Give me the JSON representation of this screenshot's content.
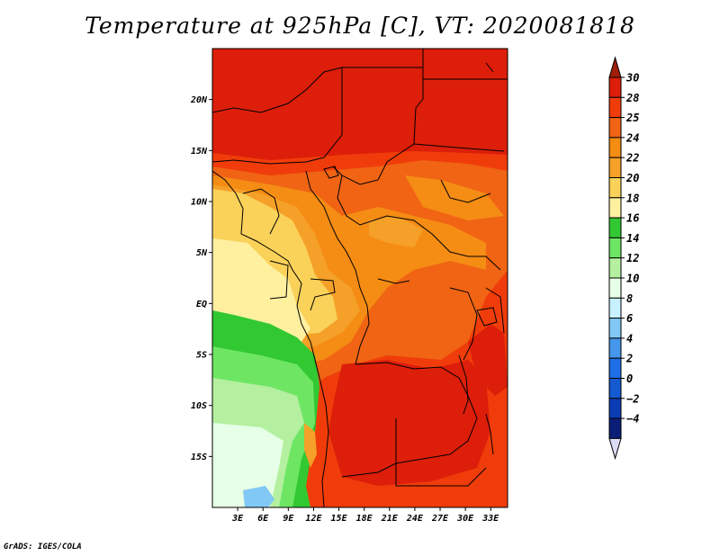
{
  "title": "Temperature at 925hPa [C], VT: 2020081818",
  "credit": "GrADS: IGES/COLA",
  "map": {
    "lon_range": [
      0,
      35
    ],
    "lat_range": [
      -20,
      25
    ],
    "lat_ticks": [
      {
        "value": 20,
        "label": "20N"
      },
      {
        "value": 15,
        "label": "15N"
      },
      {
        "value": 10,
        "label": "10N"
      },
      {
        "value": 5,
        "label": "5N"
      },
      {
        "value": 0,
        "label": "EQ"
      },
      {
        "value": -5,
        "label": "5S"
      },
      {
        "value": -10,
        "label": "10S"
      },
      {
        "value": -15,
        "label": "15S"
      }
    ],
    "lon_ticks": [
      {
        "value": 3,
        "label": "3E"
      },
      {
        "value": 6,
        "label": "6E"
      },
      {
        "value": 9,
        "label": "9E"
      },
      {
        "value": 12,
        "label": "12E"
      },
      {
        "value": 15,
        "label": "15E"
      },
      {
        "value": 18,
        "label": "18E"
      },
      {
        "value": 21,
        "label": "21E"
      },
      {
        "value": 24,
        "label": "24E"
      },
      {
        "value": 27,
        "label": "27E"
      },
      {
        "value": 30,
        "label": "30E"
      },
      {
        "value": 33,
        "label": "33E"
      }
    ]
  },
  "colorbar": {
    "levels": [
      {
        "label": "30",
        "color": "#dc1e0a"
      },
      {
        "label": "28",
        "color": "#f03c0a"
      },
      {
        "label": "25",
        "color": "#f06414"
      },
      {
        "label": "24",
        "color": "#f58c14"
      },
      {
        "label": "22",
        "color": "#f5a028"
      },
      {
        "label": "20",
        "color": "#fad25a"
      },
      {
        "label": "18",
        "color": "#fff0a0"
      },
      {
        "label": "16",
        "color": "#32c832"
      },
      {
        "label": "14",
        "color": "#6ee664"
      },
      {
        "label": "12",
        "color": "#b4f0a0"
      },
      {
        "label": "10",
        "color": "#e6ffe6"
      },
      {
        "label": "8",
        "color": "#c8f0ff"
      },
      {
        "label": "6",
        "color": "#82c8f5"
      },
      {
        "label": "4",
        "color": "#4696eb"
      },
      {
        "label": "2",
        "color": "#1e6ee6"
      },
      {
        "label": "0",
        "color": "#145ad2"
      },
      {
        "label": "−2",
        "color": "#0a3cb4"
      },
      {
        "label": "−4",
        "color": "#0a1e78"
      }
    ],
    "top_arrow_color": "#a01e0a",
    "bottom_arrow_color": "#dcdcf5"
  }
}
